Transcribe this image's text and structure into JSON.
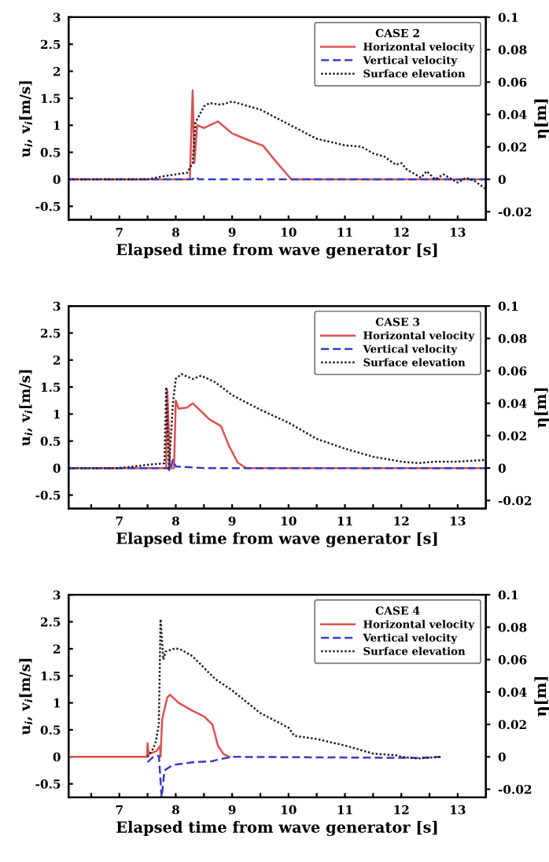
{
  "chart_data": [
    {
      "type": "line",
      "legend_title": "CASE 2",
      "xlabel": "Elapsed time from wave generator [s]",
      "ylabel": "u$_{i}$, v$_{i}$[m/s]",
      "y2label": "η[m]",
      "xlim": [
        6.1,
        13.5
      ],
      "xticks": [
        {
          "value": 6.5,
          "label": null
        },
        7,
        {
          "value": 7.5,
          "label": null
        },
        8,
        {
          "value": 8.5,
          "label": null
        },
        9,
        {
          "value": 9.5,
          "label": null
        },
        10,
        {
          "value": 10.5,
          "label": null
        },
        11,
        {
          "value": 11.5,
          "label": null
        },
        12,
        {
          "value": 12.5,
          "label": null
        },
        13
      ],
      "ylim": [
        -0.75,
        3
      ],
      "yticks": [
        -0.5,
        0,
        0.5,
        1,
        1.5,
        2,
        2.5,
        3
      ],
      "y2lim": [
        -0.025,
        0.1
      ],
      "y2ticks": [
        -0.02,
        0,
        0.02,
        0.04,
        0.06,
        0.08,
        0.1
      ],
      "legend": "top right",
      "grid": false,
      "series": [
        {
          "name": "Horizontal velocity",
          "color": "#e05050",
          "line_style": "solid",
          "x": [
            6.1,
            8.25,
            8.3,
            8.33,
            8.38,
            8.5,
            8.75,
            9.0,
            9.3,
            9.55,
            9.8,
            10.05,
            13.5
          ],
          "values": [
            0,
            0,
            1.65,
            0.3,
            1.0,
            0.95,
            1.07,
            0.85,
            0.72,
            0.62,
            0.3,
            0,
            0
          ]
        },
        {
          "name": "Vertical velocity",
          "color": "#3a3acc",
          "line_style": "dashed",
          "x": [
            6.1,
            8.3,
            8.35,
            8.4,
            13.5
          ],
          "values": [
            0,
            0,
            0.05,
            0,
            0
          ]
        },
        {
          "name": "Surface elevation",
          "color": "#222222",
          "line_style": "dotted",
          "axis": "y2",
          "x": [
            6.1,
            7.5,
            7.8,
            8.2,
            8.3,
            8.35,
            8.5,
            8.6,
            8.8,
            9.0,
            9.2,
            9.5,
            10.0,
            10.5,
            11.0,
            11.3,
            11.5,
            11.7,
            11.9,
            12.0,
            12.1,
            12.35,
            12.45,
            12.6,
            12.75,
            13.0,
            13.15,
            13.3,
            13.5
          ],
          "values": [
            0,
            0,
            0.002,
            0.004,
            0.01,
            0.035,
            0.045,
            0.047,
            0.046,
            0.048,
            0.046,
            0.043,
            0.034,
            0.025,
            0.021,
            0.02,
            0.016,
            0.014,
            0.009,
            0.01,
            0.006,
            0.001,
            0.005,
            0,
            0.003,
            -0.002,
            0.001,
            -0.001,
            -0.006
          ]
        }
      ]
    },
    {
      "type": "line",
      "legend_title": "CASE 3",
      "xlabel": "Elapsed time from wave generator [s]",
      "ylabel": "u$_{i}$, v$_{i}$[m/s]",
      "y2label": "η[m]",
      "xlim": [
        6.1,
        13.5
      ],
      "xticks": [
        {
          "value": 6.5,
          "label": null
        },
        7,
        {
          "value": 7.5,
          "label": null
        },
        8,
        {
          "value": 8.5,
          "label": null
        },
        9,
        {
          "value": 9.5,
          "label": null
        },
        10,
        {
          "value": 10.5,
          "label": null
        },
        11,
        {
          "value": 11.5,
          "label": null
        },
        12,
        {
          "value": 12.5,
          "label": null
        },
        13
      ],
      "ylim": [
        -0.75,
        3
      ],
      "yticks": [
        -0.5,
        0,
        0.5,
        1,
        1.5,
        2,
        2.5,
        3
      ],
      "y2lim": [
        -0.025,
        0.1
      ],
      "y2ticks": [
        -0.02,
        0,
        0.02,
        0.04,
        0.06,
        0.08,
        0.1
      ],
      "legend": "top right",
      "grid": false,
      "series": [
        {
          "name": "Horizontal velocity",
          "color": "#e05050",
          "line_style": "solid",
          "x": [
            6.1,
            7.83,
            7.85,
            7.9,
            7.97,
            8.0,
            8.05,
            8.2,
            8.3,
            8.45,
            8.6,
            8.8,
            8.95,
            9.1,
            9.25,
            13.5
          ],
          "values": [
            0,
            0,
            1.45,
            0,
            0,
            1.25,
            1.1,
            1.12,
            1.2,
            1.05,
            0.9,
            0.78,
            0.4,
            0.1,
            0,
            0
          ]
        },
        {
          "name": "Vertical velocity",
          "color": "#3a3acc",
          "line_style": "dashed",
          "x": [
            6.1,
            7.85,
            7.9,
            7.95,
            8.0,
            8.5,
            13.5
          ],
          "values": [
            0,
            0,
            -0.05,
            0.15,
            0.03,
            0,
            0
          ]
        },
        {
          "name": "Surface elevation",
          "color": "#222222",
          "line_style": "dotted",
          "axis": "y2",
          "x": [
            6.1,
            7.0,
            7.5,
            7.8,
            7.83,
            7.88,
            7.95,
            8.0,
            8.1,
            8.3,
            8.45,
            8.7,
            9.0,
            9.5,
            10.0,
            10.5,
            11.0,
            11.5,
            12.0,
            12.3,
            12.6,
            13.0,
            13.5
          ],
          "values": [
            0,
            0,
            0.002,
            0.003,
            0.05,
            0,
            0.04,
            0.055,
            0.058,
            0.055,
            0.057,
            0.053,
            0.045,
            0.036,
            0.028,
            0.018,
            0.012,
            0.007,
            0.004,
            0.003,
            0.004,
            0.004,
            0.005
          ]
        }
      ]
    },
    {
      "type": "line",
      "legend_title": "CASE 4",
      "xlabel": "Elapsed time from wave generator [s]",
      "ylabel": "u$_{i}$, v$_{i}$[m/s]",
      "y2label": "η[m]",
      "xlim": [
        6.1,
        13.5
      ],
      "xticks": [
        {
          "value": 6.5,
          "label": null
        },
        7,
        {
          "value": 7.5,
          "label": null
        },
        8,
        {
          "value": 8.5,
          "label": null
        },
        9,
        {
          "value": 9.5,
          "label": null
        },
        10,
        {
          "value": 10.5,
          "label": null
        },
        11,
        {
          "value": 11.5,
          "label": null
        },
        12,
        {
          "value": 12.5,
          "label": null
        },
        13
      ],
      "ylim": [
        -0.75,
        3
      ],
      "yticks": [
        -0.5,
        0,
        0.5,
        1,
        1.5,
        2,
        2.5,
        3
      ],
      "y2lim": [
        -0.025,
        0.1
      ],
      "y2ticks": [
        -0.02,
        0,
        0.02,
        0.04,
        0.06,
        0.08,
        0.1
      ],
      "legend": "top right",
      "grid": false,
      "series": [
        {
          "name": "Horizontal velocity",
          "color": "#e05050",
          "line_style": "solid",
          "x": [
            6.1,
            7.49,
            7.5,
            7.52,
            7.65,
            7.72,
            7.73,
            7.76,
            7.85,
            7.9,
            8.05,
            8.3,
            8.5,
            8.65,
            8.75,
            8.85,
            8.95
          ],
          "values": [
            0,
            0,
            0.25,
            0.05,
            0.1,
            0.2,
            0,
            0.7,
            1.1,
            1.15,
            1.0,
            0.85,
            0.75,
            0.6,
            0.2,
            0.05,
            0
          ]
        },
        {
          "name": "Vertical velocity",
          "color": "#3a3acc",
          "line_style": "dashed",
          "x": [
            7.5,
            7.6,
            7.7,
            7.75,
            7.8,
            7.95,
            8.3,
            8.65,
            8.75,
            9.0,
            12.3,
            12.7
          ],
          "values": [
            -0.1,
            0,
            0.02,
            -0.75,
            -0.25,
            -0.15,
            -0.1,
            -0.08,
            -0.05,
            0,
            -0.02,
            0
          ]
        },
        {
          "name": "Surface elevation",
          "color": "#222222",
          "line_style": "dotted",
          "axis": "y2",
          "x": [
            7.5,
            7.6,
            7.65,
            7.7,
            7.73,
            7.78,
            7.82,
            8.0,
            8.1,
            8.3,
            8.5,
            8.7,
            9.0,
            9.5,
            10.0,
            10.1,
            10.5,
            11.0,
            11.5,
            11.9,
            12.0,
            12.3,
            12.7
          ],
          "values": [
            0,
            0.005,
            0.01,
            0.02,
            0.085,
            0.06,
            0.065,
            0.067,
            0.066,
            0.062,
            0.055,
            0.048,
            0.041,
            0.027,
            0.018,
            0.013,
            0.011,
            0.007,
            0.002,
            0.001,
            0,
            -0.001,
            0
          ]
        }
      ]
    }
  ]
}
